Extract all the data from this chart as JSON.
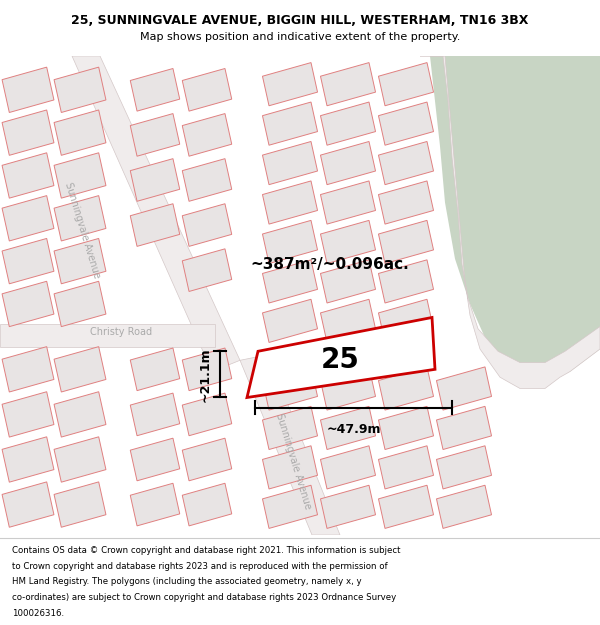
{
  "title_line1": "25, SUNNINGVALE AVENUE, BIGGIN HILL, WESTERHAM, TN16 3BX",
  "title_line2": "Map shows position and indicative extent of the property.",
  "area_label": "~387m²/~0.096ac.",
  "width_label": "~47.9m",
  "height_label": "~21.1m",
  "property_number": "25",
  "map_bg": "#f7f4f4",
  "plot_face": "#e8e4e4",
  "plot_edge": "#e08080",
  "property_outline_color": "#cc0000",
  "green_color": "#c8d5c4",
  "road_color": "#f0ecec",
  "road_edge": "#d4c8c8",
  "street_sunningvale1": "Sunningvale Avenue",
  "street_christy": "Christy Road",
  "street_sunningvale2": "Sunningvale Avenue",
  "footer_lines": [
    "Contains OS data © Crown copyright and database right 2021. This information is subject",
    "to Crown copyright and database rights 2023 and is reproduced with the permission of",
    "HM Land Registry. The polygons (including the associated geometry, namely x, y",
    "co-ordinates) are subject to Crown copyright and database rights 2023 Ordnance Survey",
    "100026316."
  ],
  "title_fontsize": 9,
  "subtitle_fontsize": 8,
  "footer_fontsize": 6.2,
  "label_fontsize": 11,
  "dim_fontsize": 9,
  "number_fontsize": 20
}
